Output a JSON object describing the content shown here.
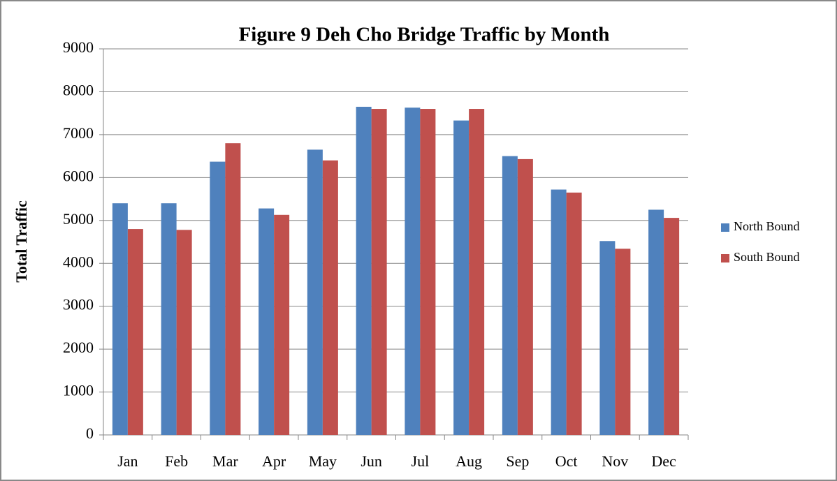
{
  "chart_data": {
    "type": "bar",
    "title": "Figure 9 Deh Cho Bridge Traffic by Month",
    "y_label": "Total Traffic",
    "categories": [
      "Jan",
      "Feb",
      "Mar",
      "Apr",
      "May",
      "Jun",
      "Jul",
      "Aug",
      "Sep",
      "Oct",
      "Nov",
      "Dec"
    ],
    "series": [
      {
        "name": "North Bound",
        "color": "#4f81bd",
        "values": [
          5400,
          5400,
          6370,
          5280,
          6650,
          7650,
          7630,
          7330,
          6500,
          5720,
          4520,
          5250
        ]
      },
      {
        "name": "South Bound",
        "color": "#c0504d",
        "values": [
          4800,
          4780,
          6800,
          5130,
          6400,
          7600,
          7600,
          7600,
          6430,
          5650,
          4340,
          5060
        ]
      }
    ],
    "ylim": [
      0,
      9000
    ],
    "yticks": [
      0,
      1000,
      2000,
      3000,
      4000,
      5000,
      6000,
      7000,
      8000,
      9000
    ],
    "grid": true,
    "legend": "right"
  }
}
